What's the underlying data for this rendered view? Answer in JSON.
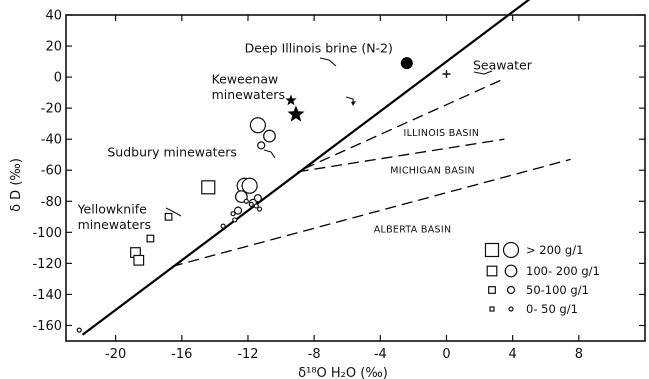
{
  "chart_data": {
    "type": "scatter",
    "xlabel": "δ¹⁸O H₂O (‰)",
    "ylabel": "δ D (‰)",
    "xlim": [
      -23,
      12
    ],
    "ylim": [
      -170,
      40
    ],
    "x_ticks": [
      {
        "value": -20,
        "label": "-20"
      },
      {
        "value": -16,
        "label": "-16"
      },
      {
        "value": -12,
        "label": "-12"
      },
      {
        "value": -8,
        "label": "-8"
      },
      {
        "value": -4,
        "label": "-4"
      },
      {
        "value": 0,
        "label": "0"
      },
      {
        "value": 4,
        "label": "4"
      },
      {
        "value": 8,
        "label": "8"
      }
    ],
    "y_ticks": [
      {
        "value": 40,
        "label": "40"
      },
      {
        "value": 20,
        "label": "20"
      },
      {
        "value": 0,
        "label": "0"
      },
      {
        "value": -20,
        "label": "-20"
      },
      {
        "value": -40,
        "label": "-40"
      },
      {
        "value": -60,
        "label": "-60"
      },
      {
        "value": -80,
        "label": "-80"
      },
      {
        "value": -100,
        "label": "-100"
      },
      {
        "value": -120,
        "label": "-120"
      },
      {
        "value": -140,
        "label": "-140"
      },
      {
        "value": -160,
        "label": "-160"
      }
    ],
    "meteoric_line": {
      "from": [
        -22,
        -166
      ],
      "to": [
        8,
        74
      ]
    },
    "basin_lines": [
      {
        "name": "ILLINOIS BASIN",
        "from": [
          -8.6,
          -59
        ],
        "to": [
          3.5,
          -1
        ]
      },
      {
        "name": "MICHIGAN BASIN",
        "from": [
          -9,
          -61
        ],
        "to": [
          3.5,
          -40
        ]
      },
      {
        "name": "ALBERTA BASIN",
        "from": [
          -16.6,
          -122
        ],
        "to": [
          7.5,
          -53
        ]
      }
    ],
    "annotations": [
      {
        "text": "Deep Illinois brine (N-2)",
        "x": -12.2,
        "y": 16
      },
      {
        "text": "Seawater",
        "x": 1.6,
        "y": 5
      },
      {
        "text": "Keweenaw",
        "x": -14.2,
        "y": -4
      },
      {
        "text": "minewaters",
        "x": -14.2,
        "y": -14
      },
      {
        "text": "ILLINOIS BASIN",
        "x": -2.6,
        "y": -38
      },
      {
        "text": "Sudbury minewaters",
        "x": -20.5,
        "y": -51
      },
      {
        "text": "MICHIGAN BASIN",
        "x": -3.4,
        "y": -62
      },
      {
        "text": "Yellowknife",
        "x": -22.3,
        "y": -88
      },
      {
        "text": "minewaters",
        "x": -22.3,
        "y": -98
      },
      {
        "text": "ALBERTA BASIN",
        "x": -4.4,
        "y": -100
      }
    ],
    "series": [
      {
        "marker": "open-circle",
        "points": [
          {
            "x": -11.4,
            "y": -31,
            "size": 4
          },
          {
            "x": -11.2,
            "y": -44,
            "size": 2
          },
          {
            "x": -10.7,
            "y": -38,
            "size": 3
          },
          {
            "x": -12.2,
            "y": -70,
            "size": 4
          },
          {
            "x": -11.9,
            "y": -70,
            "size": 4
          },
          {
            "x": -12.4,
            "y": -77,
            "size": 3
          },
          {
            "x": -11.4,
            "y": -78,
            "size": 2
          },
          {
            "x": -12.6,
            "y": -86,
            "size": 2
          },
          {
            "x": -11.7,
            "y": -81,
            "size": 2
          },
          {
            "x": -12.1,
            "y": -80,
            "size": 1
          },
          {
            "x": -11.8,
            "y": -82,
            "size": 1
          },
          {
            "x": -11.5,
            "y": -83,
            "size": 1
          },
          {
            "x": -11.3,
            "y": -85,
            "size": 1
          },
          {
            "x": -12.9,
            "y": -88,
            "size": 1
          },
          {
            "x": -12.8,
            "y": -92,
            "size": 1
          },
          {
            "x": -13.5,
            "y": -96,
            "size": 1
          },
          {
            "x": -22.2,
            "y": -163,
            "size": 1
          }
        ]
      },
      {
        "marker": "open-square",
        "points": [
          {
            "x": -14.4,
            "y": -71,
            "size": 4
          },
          {
            "x": -16.8,
            "y": -90,
            "size": 2
          },
          {
            "x": -17.9,
            "y": -104,
            "size": 2
          },
          {
            "x": -18.8,
            "y": -113,
            "size": 3
          },
          {
            "x": -18.6,
            "y": -118,
            "size": 3
          }
        ]
      },
      {
        "marker": "filled-circle",
        "points": [
          {
            "x": -2.4,
            "y": 9,
            "size": 4
          }
        ]
      },
      {
        "marker": "plus",
        "points": [
          {
            "x": 0,
            "y": 2,
            "size": 2
          }
        ]
      },
      {
        "marker": "star",
        "points": [
          {
            "x": -9.4,
            "y": -15,
            "size": 2
          },
          {
            "x": -9.1,
            "y": -24,
            "size": 4
          }
        ]
      }
    ],
    "legend": {
      "placement": "bottom-right",
      "entries": [
        {
          "label": "> 200 g/1",
          "size": 4
        },
        {
          "label": "100- 200 g/1",
          "size": 3
        },
        {
          "label": "50-100 g/1",
          "size": 2
        },
        {
          "label": "0- 50 g/1",
          "size": 1
        }
      ]
    }
  }
}
